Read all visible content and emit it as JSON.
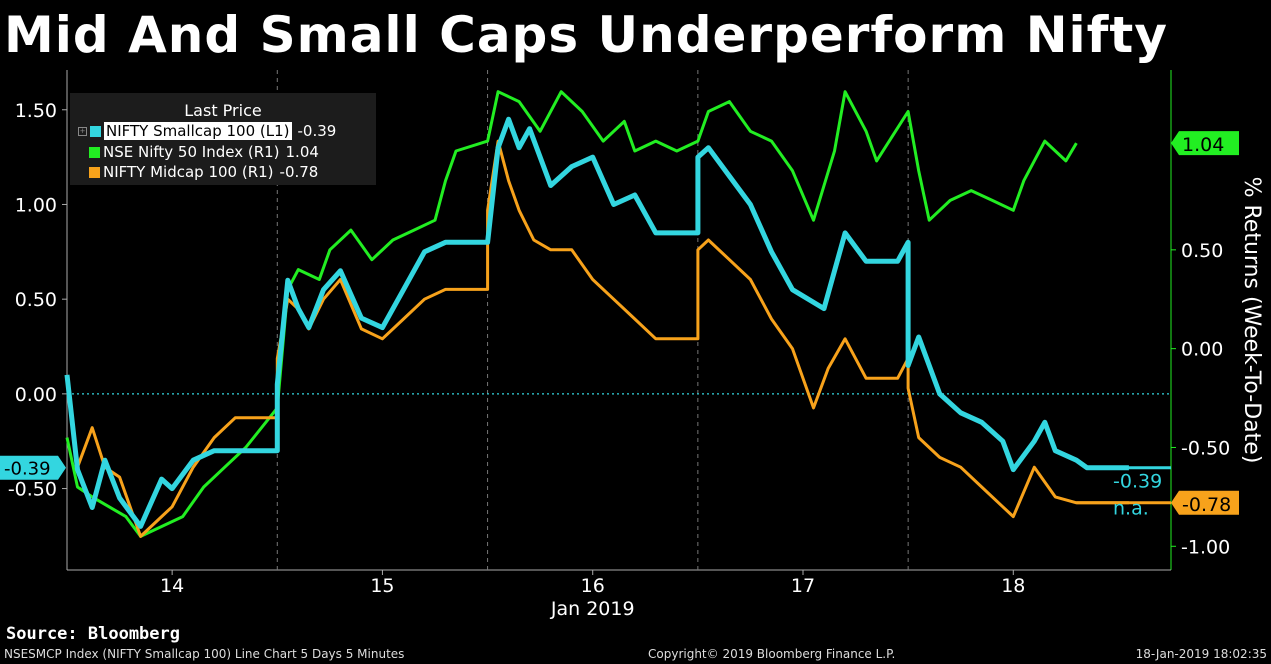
{
  "title": "Mid And Small Caps Underperform Nifty",
  "source": "Source: Bloomberg",
  "footer": {
    "left": "NSESMCP Index (NIFTY Smallcap 100) Line Chart 5 Days 5 Minutes",
    "middle": "Copyright© 2019 Bloomberg Finance L.P.",
    "right": "18-Jan-2019 18:02:35"
  },
  "legend": {
    "title": "Last Price",
    "items": [
      {
        "name": "NIFTY Smallcap 100  (L1)",
        "value": "-0.39",
        "color": "#33d6e0"
      },
      {
        "name": "NSE Nifty 50 Index  (R1)",
        "value": "1.04",
        "color": "#22ee22"
      },
      {
        "name": "NIFTY Midcap 100  (R1)",
        "value": "-0.78",
        "color": "#f7a21b"
      }
    ]
  },
  "tags": {
    "left_last": "-0.39",
    "right_nifty": "1.04",
    "right_midcap": "-0.78",
    "right_small_text": "-0.39",
    "right_na": "n.a."
  },
  "chart_data": {
    "type": "line",
    "title": "Mid And Small Caps Underperform Nifty",
    "xlabel": "Jan 2019",
    "ylabel_right": "% Returns (Week-To-Date)",
    "x_ticks": [
      "14",
      "15",
      "16",
      "17",
      "18"
    ],
    "x_range": [
      13.5,
      18.75
    ],
    "left_axis": {
      "ticks": [
        "1.50",
        "1.00",
        "0.50",
        "0.00",
        "-0.50"
      ],
      "range": [
        -0.93,
        1.71
      ]
    },
    "right_axis": {
      "ticks": [
        "0.50",
        "0.00",
        "-0.50",
        "-1.00"
      ],
      "range": [
        -1.12,
        1.41
      ]
    },
    "zero_line": 0.0,
    "series": [
      {
        "name": "NIFTY Smallcap 100 (L1)",
        "axis": "left",
        "color": "#33d6e0",
        "last": -0.39,
        "x": [
          13.5,
          13.55,
          13.62,
          13.68,
          13.75,
          13.85,
          13.95,
          14.0,
          14.1,
          14.2,
          14.3,
          14.35,
          14.5,
          14.5,
          14.55,
          14.6,
          14.65,
          14.72,
          14.8,
          14.9,
          15.0,
          15.1,
          15.2,
          15.3,
          15.4,
          15.5,
          15.55,
          15.6,
          15.65,
          15.7,
          15.8,
          15.9,
          16.0,
          16.1,
          16.2,
          16.3,
          16.35,
          16.5,
          16.5,
          16.55,
          16.65,
          16.75,
          16.85,
          16.95,
          17.1,
          17.2,
          17.3,
          17.45,
          17.5,
          17.5,
          17.55,
          17.65,
          17.75,
          17.85,
          17.95,
          18.0,
          18.1,
          18.15,
          18.2,
          18.3,
          18.35,
          18.55
        ],
        "y": [
          0.1,
          -0.4,
          -0.6,
          -0.35,
          -0.55,
          -0.7,
          -0.45,
          -0.5,
          -0.35,
          -0.3,
          -0.3,
          -0.3,
          -0.3,
          0.05,
          0.6,
          0.45,
          0.35,
          0.55,
          0.65,
          0.4,
          0.35,
          0.55,
          0.75,
          0.8,
          0.8,
          0.8,
          1.3,
          1.45,
          1.3,
          1.4,
          1.1,
          1.2,
          1.25,
          1.0,
          1.05,
          0.85,
          0.85,
          0.85,
          1.25,
          1.3,
          1.15,
          1.0,
          0.75,
          0.55,
          0.45,
          0.85,
          0.7,
          0.7,
          0.8,
          0.15,
          0.3,
          0.0,
          -0.1,
          -0.15,
          -0.25,
          -0.4,
          -0.25,
          -0.15,
          -0.3,
          -0.35,
          -0.39,
          -0.39
        ]
      },
      {
        "name": "NSE Nifty 50 Index (R1)",
        "axis": "right",
        "color": "#22ee22",
        "last": 1.04,
        "x": [
          13.5,
          13.55,
          13.62,
          13.7,
          13.78,
          13.85,
          13.95,
          14.05,
          14.15,
          14.25,
          14.35,
          14.5,
          14.55,
          14.6,
          14.7,
          14.75,
          14.85,
          14.95,
          15.05,
          15.15,
          15.25,
          15.3,
          15.35,
          15.5,
          15.55,
          15.65,
          15.75,
          15.85,
          15.95,
          16.05,
          16.15,
          16.2,
          16.3,
          16.4,
          16.5,
          16.55,
          16.65,
          16.75,
          16.85,
          16.95,
          17.05,
          17.15,
          17.2,
          17.3,
          17.35,
          17.5,
          17.55,
          17.6,
          17.7,
          17.8,
          17.9,
          18.0,
          18.05,
          18.15,
          18.25,
          18.3
        ],
        "y": [
          -0.45,
          -0.7,
          -0.75,
          -0.8,
          -0.85,
          -0.95,
          -0.9,
          -0.85,
          -0.7,
          -0.6,
          -0.5,
          -0.3,
          0.3,
          0.4,
          0.35,
          0.5,
          0.6,
          0.45,
          0.55,
          0.6,
          0.65,
          0.85,
          1.0,
          1.05,
          1.3,
          1.25,
          1.1,
          1.3,
          1.2,
          1.05,
          1.15,
          1.0,
          1.05,
          1.0,
          1.05,
          1.2,
          1.25,
          1.1,
          1.05,
          0.9,
          0.65,
          1.0,
          1.3,
          1.1,
          0.95,
          1.2,
          0.9,
          0.65,
          0.75,
          0.8,
          0.75,
          0.7,
          0.85,
          1.05,
          0.95,
          1.04
        ]
      },
      {
        "name": "NIFTY Midcap 100 (R1)",
        "axis": "right",
        "color": "#f7a21b",
        "last": -0.78,
        "x": [
          13.5,
          13.55,
          13.62,
          13.68,
          13.75,
          13.85,
          13.95,
          14.0,
          14.1,
          14.2,
          14.3,
          14.5,
          14.5,
          14.55,
          14.6,
          14.65,
          14.72,
          14.8,
          14.9,
          15.0,
          15.1,
          15.2,
          15.3,
          15.4,
          15.5,
          15.5,
          15.55,
          15.6,
          15.65,
          15.72,
          15.8,
          15.9,
          16.0,
          16.1,
          16.2,
          16.3,
          16.35,
          16.5,
          16.5,
          16.55,
          16.65,
          16.75,
          16.85,
          16.95,
          17.05,
          17.12,
          17.2,
          17.3,
          17.45,
          17.5,
          17.5,
          17.55,
          17.65,
          17.75,
          17.85,
          17.95,
          18.0,
          18.1,
          18.2,
          18.3,
          18.55
        ],
        "y": [
          -0.15,
          -0.6,
          -0.4,
          -0.6,
          -0.65,
          -0.95,
          -0.85,
          -0.8,
          -0.6,
          -0.45,
          -0.35,
          -0.35,
          -0.05,
          0.25,
          0.2,
          0.1,
          0.25,
          0.35,
          0.1,
          0.05,
          0.15,
          0.25,
          0.3,
          0.3,
          0.3,
          0.7,
          1.05,
          0.85,
          0.7,
          0.55,
          0.5,
          0.5,
          0.35,
          0.25,
          0.15,
          0.05,
          0.05,
          0.05,
          0.5,
          0.55,
          0.45,
          0.35,
          0.15,
          0.0,
          -0.3,
          -0.1,
          0.05,
          -0.15,
          -0.15,
          -0.05,
          -0.2,
          -0.45,
          -0.55,
          -0.6,
          -0.7,
          -0.8,
          -0.85,
          -0.6,
          -0.75,
          -0.78,
          -0.78
        ]
      }
    ]
  }
}
